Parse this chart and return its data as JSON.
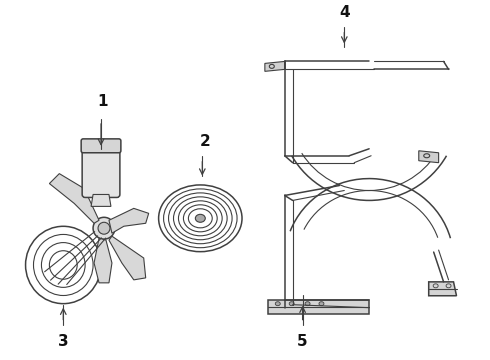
{
  "bg_color": "#ffffff",
  "line_color": "#404040",
  "label_color": "#111111",
  "fig_width": 4.9,
  "fig_height": 3.6,
  "dpi": 100
}
